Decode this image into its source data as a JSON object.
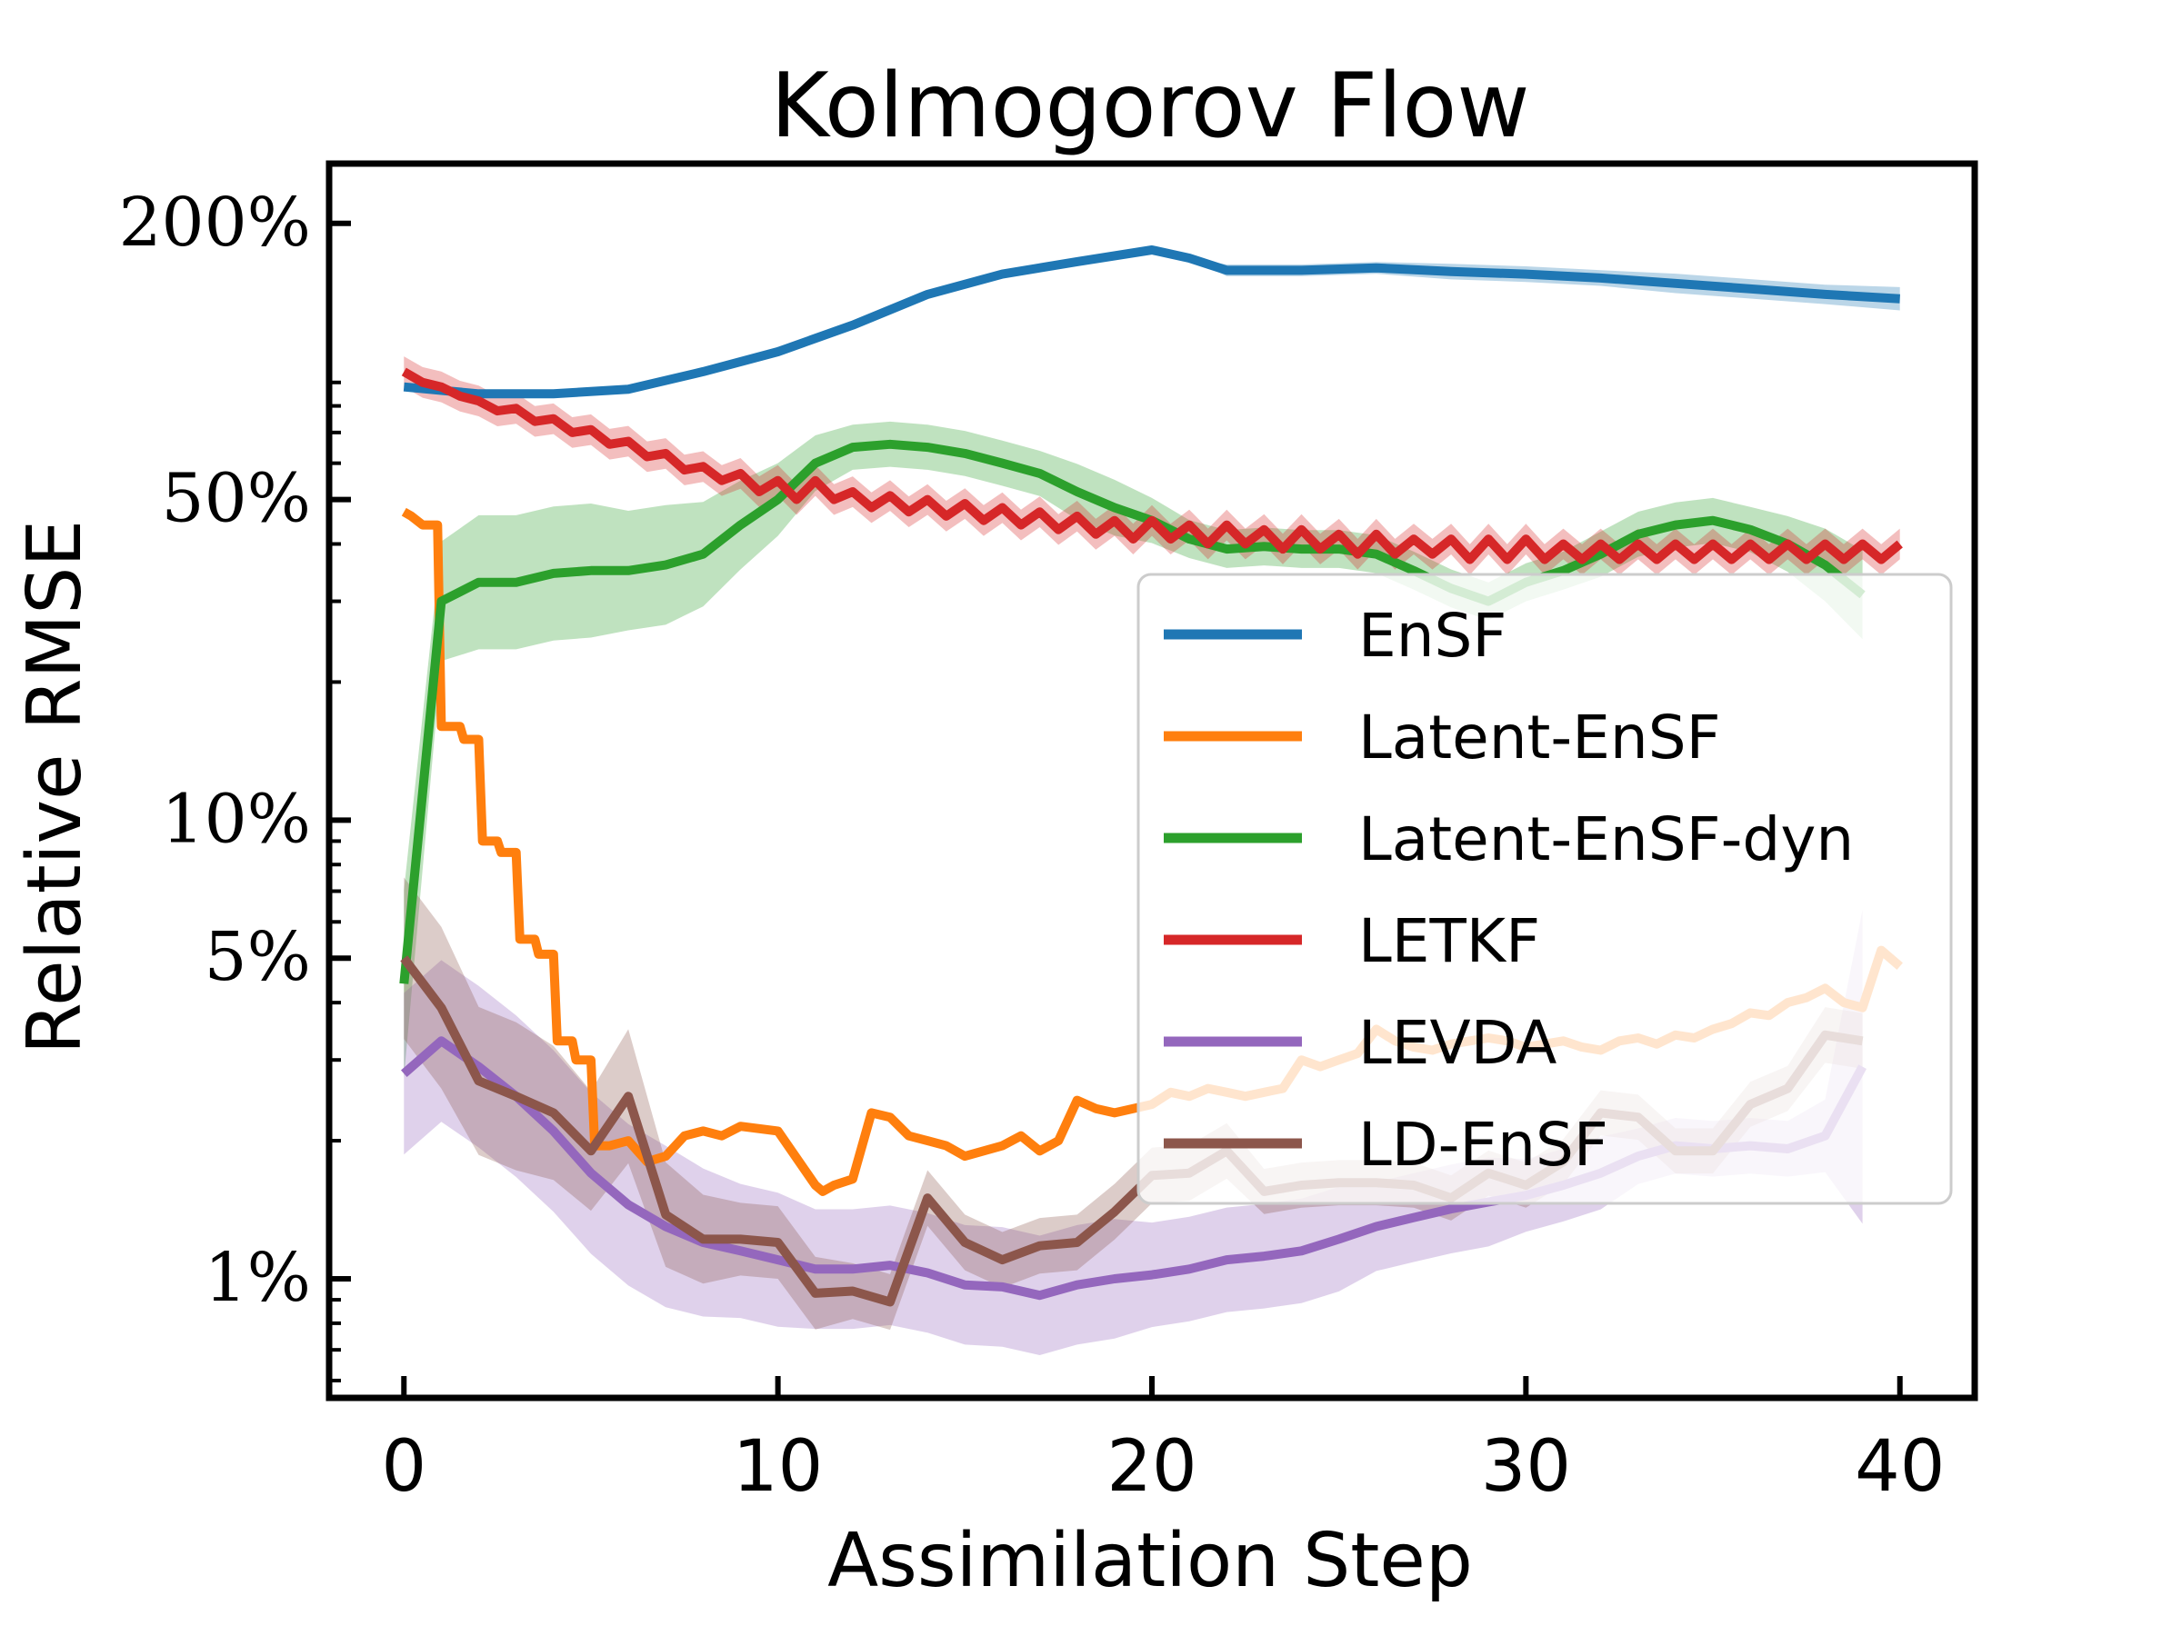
{
  "chart_data": {
    "type": "line",
    "title": "Kolmogorov Flow",
    "xlabel": "Assimilation Step",
    "ylabel": "Relative RMSE",
    "xlim": [
      -2,
      42
    ],
    "ylim": [
      0.55,
      270
    ],
    "yscale": "log",
    "xticks": [
      0,
      10,
      20,
      30,
      40
    ],
    "xtick_labels": [
      "0",
      "10",
      "20",
      "30",
      "40"
    ],
    "yticks": [
      1,
      5,
      10,
      50,
      200
    ],
    "ytick_labels": [
      "1%",
      "5%",
      "10%",
      "50%",
      "200%"
    ],
    "grid": false,
    "legend_position": "center-right",
    "series": [
      {
        "name": "EnSF",
        "color": "#1f77b4",
        "x": [
          0,
          2,
          4,
          6,
          8,
          10,
          12,
          14,
          16,
          18,
          20,
          21,
          22,
          24,
          26,
          28,
          30,
          32,
          34,
          36,
          38,
          40
        ],
        "values": [
          88,
          85,
          85,
          87,
          95,
          105,
          120,
          140,
          155,
          165,
          175,
          168,
          158,
          158,
          160,
          157,
          155,
          152,
          148,
          144,
          140,
          137
        ],
        "band": [
          1.0,
          1.0,
          1.0,
          1.0,
          1.0,
          1.0,
          1.0,
          1.0,
          1.0,
          1.0,
          1.0,
          1.0,
          1.03,
          1.03,
          1.03,
          1.04,
          1.04,
          1.04,
          1.05,
          1.05,
          1.05,
          1.06
        ]
      },
      {
        "name": "Latent-EnSF",
        "color": "#ff7f0e",
        "x": [
          0,
          0.2,
          0.5,
          0.9,
          1.0,
          1.5,
          1.6,
          2.0,
          2.1,
          2.5,
          2.6,
          3.0,
          3.1,
          3.5,
          3.6,
          4.0,
          4.1,
          4.5,
          4.6,
          5.0,
          5.1,
          5.5,
          6,
          6.5,
          7,
          7.5,
          8,
          8.5,
          9,
          10,
          11,
          11.2,
          11.5,
          12,
          12.5,
          13,
          13.5,
          14,
          14.5,
          15,
          15.5,
          16,
          16.5,
          17,
          17.5,
          18,
          18.5,
          19,
          19.5,
          20,
          20.5,
          21,
          21.5,
          22,
          22.5,
          23,
          23.5,
          24,
          24.5,
          25,
          25.5,
          26,
          26.5,
          27,
          27.5,
          28,
          28.5,
          29,
          29.5,
          30,
          30.5,
          31,
          31.5,
          32,
          32.5,
          33,
          33.5,
          34,
          34.5,
          35,
          35.5,
          36,
          36.5,
          37,
          37.5,
          38,
          38.5,
          39,
          39.5,
          40
        ],
        "values": [
          47,
          46,
          44,
          44,
          16,
          16,
          15,
          15,
          9,
          9,
          8.5,
          8.5,
          5.5,
          5.5,
          5.1,
          5.1,
          3.3,
          3.3,
          3.0,
          3.0,
          1.95,
          1.95,
          2.0,
          1.8,
          1.85,
          2.05,
          2.1,
          2.05,
          2.15,
          2.1,
          1.6,
          1.55,
          1.6,
          1.65,
          2.3,
          2.25,
          2.05,
          2.0,
          1.95,
          1.85,
          1.9,
          1.95,
          2.05,
          1.9,
          2.0,
          2.45,
          2.35,
          2.3,
          2.35,
          2.4,
          2.55,
          2.5,
          2.6,
          2.55,
          2.5,
          2.55,
          2.6,
          3.0,
          2.9,
          3.0,
          3.1,
          3.5,
          3.3,
          3.2,
          3.15,
          3.25,
          3.3,
          3.35,
          3.3,
          3.2,
          3.25,
          3.3,
          3.2,
          3.15,
          3.3,
          3.35,
          3.25,
          3.4,
          3.35,
          3.5,
          3.6,
          3.8,
          3.75,
          4.0,
          4.1,
          4.3,
          4.0,
          3.9,
          5.2,
          4.8
        ]
      },
      {
        "name": "Latent-EnSF-dyn",
        "color": "#2ca02c",
        "x": [
          0,
          1,
          2,
          3,
          4,
          5,
          6,
          7,
          8,
          9,
          10,
          11,
          12,
          13,
          14,
          15,
          16,
          17,
          18,
          19,
          20,
          21,
          22,
          23,
          24,
          25,
          26,
          27,
          28,
          29,
          30,
          31,
          32,
          33,
          34,
          35,
          36,
          37,
          38,
          39
        ],
        "values": [
          4.4,
          30,
          33,
          33,
          34.5,
          35,
          35,
          36,
          38,
          44,
          50,
          60,
          65,
          66,
          65,
          63,
          60,
          57,
          52,
          48,
          45,
          41,
          39,
          39.5,
          39,
          39,
          38,
          35,
          32,
          30,
          33,
          35,
          38,
          42,
          44,
          45,
          43,
          40,
          36,
          31
        ],
        "band": [
          1.6,
          1.35,
          1.4,
          1.4,
          1.4,
          1.4,
          1.35,
          1.35,
          1.3,
          1.25,
          1.2,
          1.15,
          1.12,
          1.12,
          1.12,
          1.12,
          1.12,
          1.12,
          1.15,
          1.15,
          1.12,
          1.1,
          1.1,
          1.1,
          1.1,
          1.1,
          1.1,
          1.1,
          1.1,
          1.1,
          1.1,
          1.1,
          1.12,
          1.12,
          1.12,
          1.12,
          1.12,
          1.15,
          1.2,
          1.25
        ]
      },
      {
        "name": "LETKF",
        "color": "#d62728",
        "x": [
          0,
          0.5,
          1,
          1.5,
          2,
          2.5,
          3,
          3.5,
          4,
          4.5,
          5,
          5.5,
          6,
          6.5,
          7,
          7.5,
          8,
          8.5,
          9,
          9.5,
          10,
          10.5,
          11,
          11.5,
          12,
          12.5,
          13,
          13.5,
          14,
          14.5,
          15,
          15.5,
          16,
          16.5,
          17,
          17.5,
          18,
          18.5,
          19,
          19.5,
          20,
          20.5,
          21,
          21.5,
          22,
          22.5,
          23,
          23.5,
          24,
          24.5,
          25,
          25.5,
          26,
          26.5,
          27,
          27.5,
          28,
          28.5,
          29,
          29.5,
          30,
          30.5,
          31,
          31.5,
          32,
          32.5,
          33,
          33.5,
          34,
          34.5,
          35,
          35.5,
          36,
          36.5,
          37,
          37.5,
          38,
          38.5,
          39,
          39.5,
          40
        ],
        "values": [
          95,
          90,
          88,
          84,
          82,
          78,
          79,
          74,
          75,
          70,
          71,
          66,
          67,
          62,
          63,
          58,
          59,
          55,
          57,
          52,
          55,
          50,
          55,
          50,
          52,
          48,
          51,
          47,
          50,
          46,
          49,
          45,
          48,
          44,
          47,
          43,
          46,
          42,
          45,
          41,
          45,
          41,
          44,
          40,
          44,
          40,
          43,
          39,
          43,
          39,
          42,
          38,
          42,
          38,
          41,
          38,
          41,
          37,
          41,
          37,
          41,
          37,
          40,
          37,
          40,
          37,
          40,
          37,
          40,
          37,
          40,
          37,
          40,
          37,
          40,
          37,
          40,
          37,
          40,
          37,
          40
        ],
        "band": 1.08
      },
      {
        "name": "LEVDA",
        "color": "#9467bd",
        "x": [
          0,
          1,
          2,
          3,
          4,
          5,
          6,
          7,
          8,
          9,
          10,
          11,
          12,
          13,
          14,
          15,
          16,
          17,
          18,
          19,
          20,
          21,
          22,
          23,
          24,
          25,
          26,
          27,
          28,
          29,
          30,
          31,
          32,
          33,
          34,
          35,
          36,
          37,
          38,
          39
        ],
        "values": [
          2.8,
          3.3,
          2.9,
          2.5,
          2.1,
          1.7,
          1.45,
          1.3,
          1.2,
          1.15,
          1.1,
          1.05,
          1.05,
          1.07,
          1.03,
          0.97,
          0.96,
          0.92,
          0.97,
          1.0,
          1.02,
          1.05,
          1.1,
          1.12,
          1.15,
          1.22,
          1.3,
          1.36,
          1.42,
          1.47,
          1.52,
          1.6,
          1.7,
          1.85,
          1.95,
          1.92,
          1.95,
          1.92,
          2.05,
          2.9
        ],
        "band": [
          1.5,
          1.5,
          1.5,
          1.5,
          1.5,
          1.5,
          1.5,
          1.5,
          1.45,
          1.4,
          1.4,
          1.35,
          1.35,
          1.35,
          1.35,
          1.35,
          1.35,
          1.35,
          1.35,
          1.35,
          1.3,
          1.3,
          1.3,
          1.3,
          1.3,
          1.3,
          1.25,
          1.25,
          1.25,
          1.25,
          1.2,
          1.2,
          1.2,
          1.15,
          1.15,
          1.15,
          1.15,
          1.15,
          1.2,
          2.2
        ]
      },
      {
        "name": "LD-EnSF",
        "color": "#8c564b",
        "x": [
          0,
          1,
          2,
          3,
          4,
          5,
          6,
          7,
          8,
          9,
          10,
          11,
          12,
          13,
          14,
          15,
          16,
          17,
          18,
          19,
          20,
          21,
          22,
          23,
          24,
          25,
          26,
          27,
          28,
          29,
          30,
          31,
          32,
          33,
          34,
          35,
          36,
          37,
          38,
          39
        ],
        "values": [
          5.0,
          3.9,
          2.7,
          2.5,
          2.3,
          1.9,
          2.5,
          1.38,
          1.22,
          1.22,
          1.2,
          0.93,
          0.94,
          0.89,
          1.5,
          1.2,
          1.1,
          1.18,
          1.2,
          1.4,
          1.68,
          1.7,
          1.9,
          1.55,
          1.6,
          1.62,
          1.62,
          1.6,
          1.5,
          1.7,
          1.6,
          1.8,
          2.3,
          2.25,
          1.9,
          1.9,
          2.4,
          2.6,
          3.4,
          3.3
        ],
        "band": [
          1.5,
          1.5,
          1.45,
          1.45,
          1.4,
          1.35,
          1.4,
          1.3,
          1.25,
          1.2,
          1.2,
          1.2,
          1.15,
          1.15,
          1.15,
          1.15,
          1.15,
          1.15,
          1.15,
          1.15,
          1.15,
          1.15,
          1.15,
          1.12,
          1.12,
          1.12,
          1.12,
          1.12,
          1.12,
          1.12,
          1.12,
          1.12,
          1.12,
          1.12,
          1.12,
          1.12,
          1.12,
          1.12,
          1.15,
          1.15
        ]
      }
    ]
  }
}
